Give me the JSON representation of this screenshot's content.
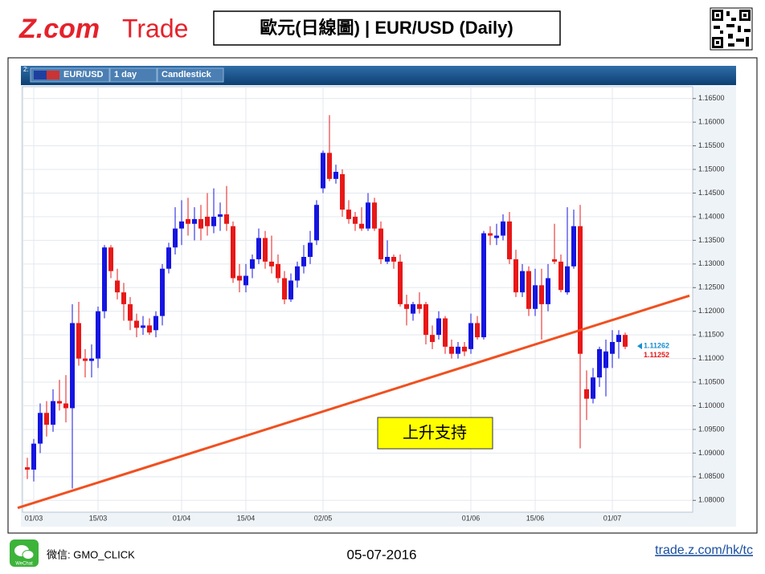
{
  "header": {
    "logo": "Z.com",
    "logo_suffix": "Trade",
    "title": "歐元(日線圖) | EUR/USD (Daily)"
  },
  "toolbar": {
    "index": "2:",
    "symbol": "EUR/USD",
    "period": "1 day",
    "style": "Candlestick"
  },
  "chart_data": {
    "type": "candlestick",
    "up_color": "#1515e0",
    "down_color": "#e81818",
    "grid": true,
    "categories": [
      null,
      "01/03",
      null,
      null,
      null,
      null,
      null,
      null,
      null,
      null,
      null,
      "15/03",
      null,
      null,
      null,
      null,
      null,
      null,
      null,
      null,
      null,
      null,
      null,
      null,
      "01/04",
      null,
      null,
      null,
      null,
      null,
      null,
      null,
      null,
      null,
      "15/04",
      null,
      null,
      null,
      null,
      null,
      null,
      null,
      null,
      null,
      null,
      null,
      "02/05",
      null,
      null,
      null,
      null,
      null,
      null,
      null,
      null,
      null,
      null,
      null,
      null,
      null,
      null,
      null,
      null,
      null,
      null,
      null,
      null,
      null,
      null,
      "01/06",
      null,
      null,
      null,
      null,
      null,
      null,
      null,
      null,
      null,
      "15/06",
      null,
      null,
      null,
      null,
      null,
      null,
      null,
      null,
      null,
      null,
      null,
      "01/07",
      null,
      null
    ],
    "ohlc": [
      [
        1.087,
        1.089,
        1.0845,
        1.0865
      ],
      [
        1.0865,
        1.093,
        1.084,
        1.092
      ],
      [
        1.092,
        1.1005,
        1.09,
        1.0985
      ],
      [
        1.0985,
        1.101,
        1.0935,
        1.096
      ],
      [
        1.096,
        1.1035,
        1.0945,
        1.101
      ],
      [
        1.101,
        1.1055,
        1.099,
        1.1005
      ],
      [
        1.1005,
        1.1065,
        1.0965,
        1.0995
      ],
      [
        1.0995,
        1.1215,
        1.0825,
        1.1175
      ],
      [
        1.1175,
        1.122,
        1.1085,
        1.11
      ],
      [
        1.11,
        1.112,
        1.106,
        1.1095
      ],
      [
        1.1095,
        1.113,
        1.106,
        1.11
      ],
      [
        1.11,
        1.121,
        1.108,
        1.12
      ],
      [
        1.12,
        1.134,
        1.1185,
        1.1335
      ],
      [
        1.1335,
        1.134,
        1.127,
        1.1285
      ],
      [
        1.1265,
        1.129,
        1.1225,
        1.124
      ],
      [
        1.124,
        1.126,
        1.118,
        1.1215
      ],
      [
        1.1215,
        1.123,
        1.116,
        1.118
      ],
      [
        1.118,
        1.1195,
        1.1145,
        1.1165
      ],
      [
        1.1165,
        1.119,
        1.115,
        1.117
      ],
      [
        1.117,
        1.1185,
        1.115,
        1.1155
      ],
      [
        1.116,
        1.12,
        1.1145,
        1.119
      ],
      [
        1.119,
        1.13,
        1.117,
        1.129
      ],
      [
        1.129,
        1.1345,
        1.128,
        1.1335
      ],
      [
        1.1335,
        1.142,
        1.132,
        1.1375
      ],
      [
        1.1375,
        1.1435,
        1.134,
        1.139
      ],
      [
        1.1395,
        1.144,
        1.136,
        1.1385
      ],
      [
        1.1385,
        1.142,
        1.135,
        1.1395
      ],
      [
        1.1395,
        1.1425,
        1.135,
        1.1375
      ],
      [
        1.14,
        1.145,
        1.136,
        1.138
      ],
      [
        1.138,
        1.146,
        1.1365,
        1.14
      ],
      [
        1.14,
        1.143,
        1.137,
        1.1405
      ],
      [
        1.1405,
        1.1465,
        1.137,
        1.1385
      ],
      [
        1.138,
        1.139,
        1.126,
        1.127
      ],
      [
        1.1275,
        1.13,
        1.124,
        1.1265
      ],
      [
        1.1255,
        1.13,
        1.124,
        1.1275
      ],
      [
        1.129,
        1.132,
        1.127,
        1.131
      ],
      [
        1.131,
        1.1375,
        1.13,
        1.1355
      ],
      [
        1.1355,
        1.137,
        1.129,
        1.1305
      ],
      [
        1.1305,
        1.136,
        1.128,
        1.1295
      ],
      [
        1.13,
        1.132,
        1.126,
        1.127
      ],
      [
        1.127,
        1.1285,
        1.1215,
        1.1225
      ],
      [
        1.1225,
        1.128,
        1.122,
        1.1265
      ],
      [
        1.1265,
        1.1305,
        1.125,
        1.1295
      ],
      [
        1.1295,
        1.134,
        1.128,
        1.1315
      ],
      [
        1.1315,
        1.137,
        1.13,
        1.1345
      ],
      [
        1.135,
        1.1435,
        1.134,
        1.1425
      ],
      [
        1.146,
        1.154,
        1.145,
        1.1535
      ],
      [
        1.1535,
        1.1615,
        1.1475,
        1.148
      ],
      [
        1.148,
        1.151,
        1.147,
        1.1495
      ],
      [
        1.149,
        1.15,
        1.14,
        1.1415
      ],
      [
        1.1415,
        1.1435,
        1.1385,
        1.1395
      ],
      [
        1.14,
        1.141,
        1.137,
        1.1385
      ],
      [
        1.1385,
        1.142,
        1.137,
        1.1375
      ],
      [
        1.1375,
        1.145,
        1.137,
        1.143
      ],
      [
        1.143,
        1.144,
        1.137,
        1.1375
      ],
      [
        1.1375,
        1.139,
        1.13,
        1.131
      ],
      [
        1.1305,
        1.135,
        1.13,
        1.1315
      ],
      [
        1.1315,
        1.132,
        1.129,
        1.1305
      ],
      [
        1.1305,
        1.132,
        1.121,
        1.1215
      ],
      [
        1.1215,
        1.1235,
        1.117,
        1.1205
      ],
      [
        1.1195,
        1.122,
        1.118,
        1.1215
      ],
      [
        1.1215,
        1.124,
        1.1195,
        1.1205
      ],
      [
        1.1215,
        1.122,
        1.113,
        1.115
      ],
      [
        1.115,
        1.117,
        1.112,
        1.1135
      ],
      [
        1.115,
        1.12,
        1.114,
        1.1185
      ],
      [
        1.1185,
        1.119,
        1.111,
        1.1125
      ],
      [
        1.1125,
        1.114,
        1.11,
        1.111
      ],
      [
        1.111,
        1.1135,
        1.11,
        1.1125
      ],
      [
        1.1125,
        1.1135,
        1.1105,
        1.1115
      ],
      [
        1.112,
        1.1195,
        1.111,
        1.1175
      ],
      [
        1.1175,
        1.119,
        1.114,
        1.1145
      ],
      [
        1.1145,
        1.137,
        1.114,
        1.1365
      ],
      [
        1.1365,
        1.138,
        1.134,
        1.136
      ],
      [
        1.1355,
        1.1385,
        1.134,
        1.136
      ],
      [
        1.136,
        1.1405,
        1.135,
        1.139
      ],
      [
        1.139,
        1.141,
        1.13,
        1.131
      ],
      [
        1.131,
        1.133,
        1.123,
        1.124
      ],
      [
        1.124,
        1.13,
        1.123,
        1.1285
      ],
      [
        1.1285,
        1.1295,
        1.119,
        1.1205
      ],
      [
        1.1205,
        1.129,
        1.119,
        1.1255
      ],
      [
        1.1255,
        1.129,
        1.114,
        1.1215
      ],
      [
        1.1215,
        1.13,
        1.12,
        1.127
      ],
      [
        1.131,
        1.1385,
        1.13,
        1.1305
      ],
      [
        1.1305,
        1.132,
        1.124,
        1.1245
      ],
      [
        1.124,
        1.142,
        1.1235,
        1.1295
      ],
      [
        1.1295,
        1.1415,
        1.129,
        1.138
      ],
      [
        1.138,
        1.1425,
        1.091,
        1.111
      ],
      [
        1.1035,
        1.1075,
        1.097,
        1.1015
      ],
      [
        1.1015,
        1.108,
        1.1005,
        1.106
      ],
      [
        1.106,
        1.1125,
        1.104,
        1.112
      ],
      [
        1.108,
        1.114,
        1.102,
        1.1115
      ],
      [
        1.111,
        1.116,
        1.108,
        1.1135
      ],
      [
        1.1135,
        1.116,
        1.11,
        1.115
      ],
      [
        1.115,
        1.1155,
        1.112,
        1.1125
      ]
    ],
    "ylim": [
      1.0775,
      1.1675
    ],
    "yticks": [
      {
        "value": 1.08,
        "label": "1.08000"
      },
      {
        "value": 1.085,
        "label": "1.08500"
      },
      {
        "value": 1.09,
        "label": "1.09000"
      },
      {
        "value": 1.095,
        "label": "1.09500"
      },
      {
        "value": 1.1,
        "label": "1.10000"
      },
      {
        "value": 1.105,
        "label": "1.10500"
      },
      {
        "value": 1.11,
        "label": "1.11000"
      },
      {
        "value": 1.115,
        "label": "1.11500"
      },
      {
        "value": 1.12,
        "label": "1.12000"
      },
      {
        "value": 1.125,
        "label": "1.12500"
      },
      {
        "value": 1.13,
        "label": "1.13000"
      },
      {
        "value": 1.135,
        "label": "1.13500"
      },
      {
        "value": 1.14,
        "label": "1.14000"
      },
      {
        "value": 1.145,
        "label": "1.14500"
      },
      {
        "value": 1.15,
        "label": "1.15000"
      },
      {
        "value": 1.155,
        "label": "1.15500"
      },
      {
        "value": 1.16,
        "label": "1.16000"
      },
      {
        "value": 1.165,
        "label": "1.16500"
      }
    ],
    "last_prices": [
      {
        "value": 1.11262,
        "color": "#1a8fd0"
      },
      {
        "value": 1.11252,
        "color": "#e81818"
      }
    ],
    "trend_line": {
      "x": [
        -1.5,
        103
      ],
      "values": [
        1.0784,
        1.1233
      ],
      "color": "#f05020"
    },
    "annotation": "上升支持"
  },
  "footer": {
    "wechat_icon": "WeChat",
    "wechat": "微信: GMO_CLICK",
    "date": "05-07-2016",
    "link": "trade.z.com/hk/tc"
  }
}
